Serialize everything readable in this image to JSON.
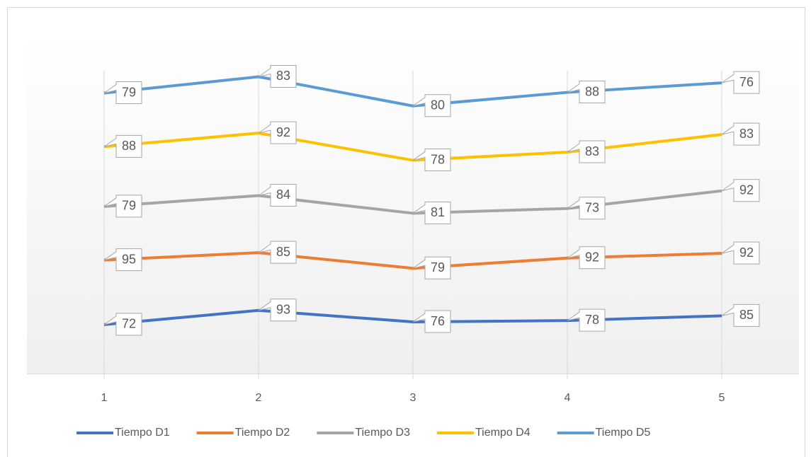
{
  "chart_data": {
    "type": "line",
    "stacked": true,
    "categories": [
      "1",
      "2",
      "3",
      "4",
      "5"
    ],
    "series": [
      {
        "name": "Tiempo D1",
        "color": "#4472c4",
        "values": [
          72,
          93,
          76,
          78,
          85
        ]
      },
      {
        "name": "Tiempo D2",
        "color": "#ed7d31",
        "values": [
          95,
          85,
          79,
          92,
          92
        ]
      },
      {
        "name": "Tiempo D3",
        "color": "#a5a5a5",
        "values": [
          79,
          84,
          81,
          73,
          92
        ]
      },
      {
        "name": "Tiempo D4",
        "color": "#ffc000",
        "values": [
          88,
          92,
          78,
          83,
          83
        ]
      },
      {
        "name": "Tiempo D5",
        "color": "#5b9bd5",
        "values": [
          79,
          83,
          80,
          88,
          76
        ]
      }
    ],
    "ylim": [
      0,
      500
    ],
    "legend": "bottom"
  }
}
